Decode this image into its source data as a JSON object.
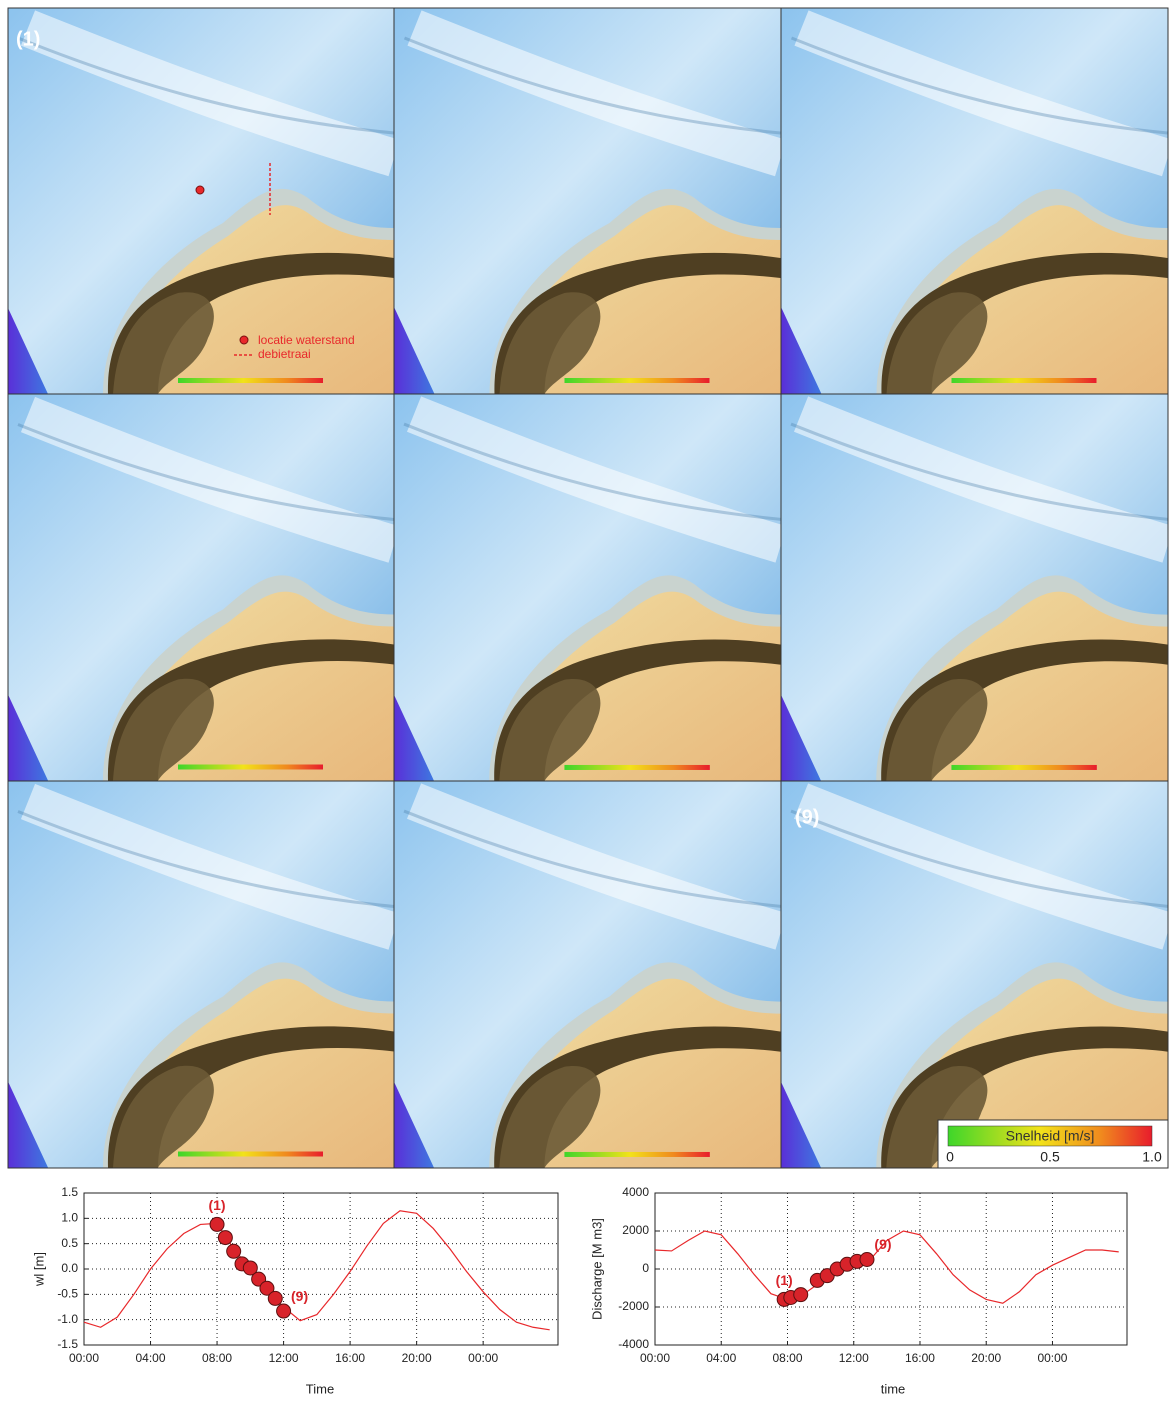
{
  "panels": {
    "label_first": "(1)",
    "label_last": "(9)",
    "legend": {
      "point": "locatie waterstand",
      "line": "debietraai"
    },
    "colorbar": {
      "title": "Snelheid [m/s]",
      "ticks": [
        "0",
        "0.5",
        "1.0"
      ]
    }
  },
  "chart_data": [
    {
      "type": "line",
      "xlabel": "Time",
      "ylabel": "wl [m]",
      "color": "#e8282b",
      "x": [
        0,
        1,
        2,
        3,
        4,
        5,
        6,
        7,
        8,
        9,
        10,
        11,
        12,
        13,
        14,
        15,
        16,
        17,
        18,
        19,
        20,
        21,
        22,
        23,
        24,
        25,
        26,
        27,
        28
      ],
      "values": [
        -1.05,
        -1.15,
        -0.95,
        -0.5,
        0.0,
        0.4,
        0.7,
        0.88,
        0.9,
        0.4,
        0.0,
        -0.4,
        -0.75,
        -1.02,
        -0.9,
        -0.5,
        -0.05,
        0.45,
        0.9,
        1.15,
        1.1,
        0.8,
        0.4,
        -0.05,
        -0.45,
        -0.8,
        -1.05,
        -1.15,
        -1.2
      ],
      "markers": {
        "color": "#d8232a",
        "x": [
          8,
          8.5,
          9,
          9.5,
          10,
          10.5,
          11,
          11.5,
          12
        ],
        "values": [
          0.88,
          0.62,
          0.35,
          0.1,
          0.02,
          -0.2,
          -0.38,
          -0.58,
          -0.83
        ]
      },
      "annotations": [
        "(1)",
        "(9)"
      ],
      "xlim": [
        0,
        28.5
      ],
      "ylim": [
        -1.5,
        1.5
      ],
      "xticks": [
        {
          "value": 0,
          "label": "00:00"
        },
        {
          "value": 4,
          "label": "04:00"
        },
        {
          "value": 8,
          "label": "08:00"
        },
        {
          "value": 12,
          "label": "12:00"
        },
        {
          "value": 16,
          "label": "16:00"
        },
        {
          "value": 20,
          "label": "20:00"
        },
        {
          "value": 24,
          "label": "00:00"
        }
      ],
      "yticks": [
        -1.5,
        {
          "value": -1,
          "label": "-1.0"
        },
        -0.5,
        {
          "value": 0,
          "label": "0.0"
        },
        0.5,
        {
          "value": 1,
          "label": "1.0"
        },
        1.5
      ],
      "grid": true
    },
    {
      "type": "line",
      "xlabel": "time",
      "ylabel": "Discharge [M m3]",
      "color": "#e8282b",
      "x": [
        0,
        1,
        2,
        3,
        4,
        5,
        6,
        7,
        8,
        9,
        10,
        11,
        12,
        13,
        14,
        15,
        16,
        17,
        18,
        19,
        20,
        21,
        22,
        23,
        24,
        25,
        26,
        27,
        28
      ],
      "values": [
        1000,
        950,
        1500,
        2000,
        1800,
        800,
        -300,
        -1300,
        -1600,
        -1300,
        -700,
        -150,
        250,
        500,
        1500,
        2000,
        1800,
        800,
        -300,
        -1100,
        -1600,
        -1800,
        -1200,
        -300,
        200,
        600,
        1000,
        1000,
        900
      ],
      "markers": {
        "color": "#d8232a",
        "x": [
          7.8,
          8.2,
          8.8,
          9.8,
          10.4,
          11,
          11.6,
          12.2,
          12.8
        ],
        "values": [
          -1600,
          -1500,
          -1350,
          -600,
          -350,
          0,
          250,
          400,
          500
        ]
      },
      "annotations": [
        "(1)",
        "(9)"
      ],
      "xlim": [
        0,
        28.5
      ],
      "ylim": [
        -4000,
        4000
      ],
      "xticks": [
        {
          "value": 0,
          "label": "00:00"
        },
        {
          "value": 4,
          "label": "04:00"
        },
        {
          "value": 8,
          "label": "08:00"
        },
        {
          "value": 12,
          "label": "12:00"
        },
        {
          "value": 16,
          "label": "16:00"
        },
        {
          "value": 20,
          "label": "20:00"
        },
        {
          "value": 24,
          "label": "00:00"
        }
      ],
      "yticks": [
        -4000,
        -2000,
        0,
        2000,
        4000
      ],
      "grid": true
    }
  ]
}
